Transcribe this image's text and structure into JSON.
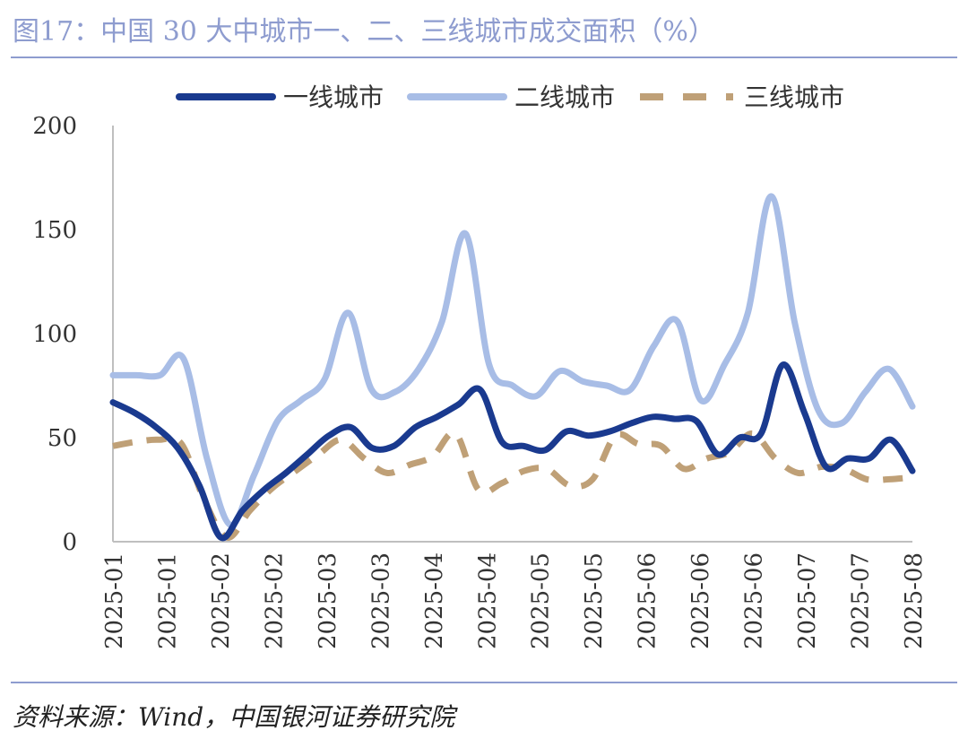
{
  "header": {
    "title": "图17：中国 30 大中城市一、二、三线城市成交面积（%）"
  },
  "footer": {
    "source": "资料来源：Wind，中国银河证券研究院"
  },
  "chart_data": {
    "type": "line",
    "title": "图17：中国 30 大中城市一、二、三线城市成交面积（%）",
    "xlabel": "",
    "ylabel": "",
    "ylim": [
      0,
      200
    ],
    "yticks": [
      0,
      50,
      100,
      150,
      200
    ],
    "grid": false,
    "legend": "top",
    "x_tick_labels": [
      "2025-01",
      "2025-01",
      "2025-02",
      "2025-02",
      "2025-03",
      "2025-03",
      "2025-04",
      "2025-04",
      "2025-05",
      "2025-05",
      "2025-06",
      "2025-06",
      "2025-06",
      "2025-07",
      "2025-07",
      "2025-08"
    ],
    "series": [
      {
        "name": "一线城市",
        "color": "#1a3a8f",
        "dash": "solid",
        "values": [
          67,
          62,
          55,
          45,
          27,
          2,
          15,
          25,
          33,
          42,
          51,
          55,
          45,
          46,
          55,
          60,
          66,
          73,
          48,
          46,
          44,
          53,
          51,
          53,
          57,
          60,
          59,
          58,
          42,
          50,
          52,
          85,
          62,
          36,
          40,
          40,
          49,
          34
        ]
      },
      {
        "name": "二线城市",
        "color": "#a8bde6",
        "dash": "solid",
        "values": [
          80,
          80,
          80,
          88,
          40,
          8,
          32,
          58,
          68,
          78,
          110,
          73,
          72,
          83,
          106,
          148,
          85,
          75,
          70,
          82,
          77,
          75,
          73,
          94,
          106,
          68,
          85,
          110,
          166,
          105,
          63,
          57,
          72,
          83,
          65
        ]
      },
      {
        "name": "三线城市",
        "color": "#bfa077",
        "dash": "dash",
        "values": [
          46,
          48,
          49,
          47,
          20,
          2,
          15,
          26,
          34,
          42,
          49,
          40,
          33,
          37,
          41,
          52,
          25,
          28,
          34,
          35,
          27,
          30,
          51,
          47,
          46,
          35,
          40,
          43,
          52,
          40,
          33,
          36,
          35,
          30,
          30,
          31
        ]
      }
    ]
  }
}
